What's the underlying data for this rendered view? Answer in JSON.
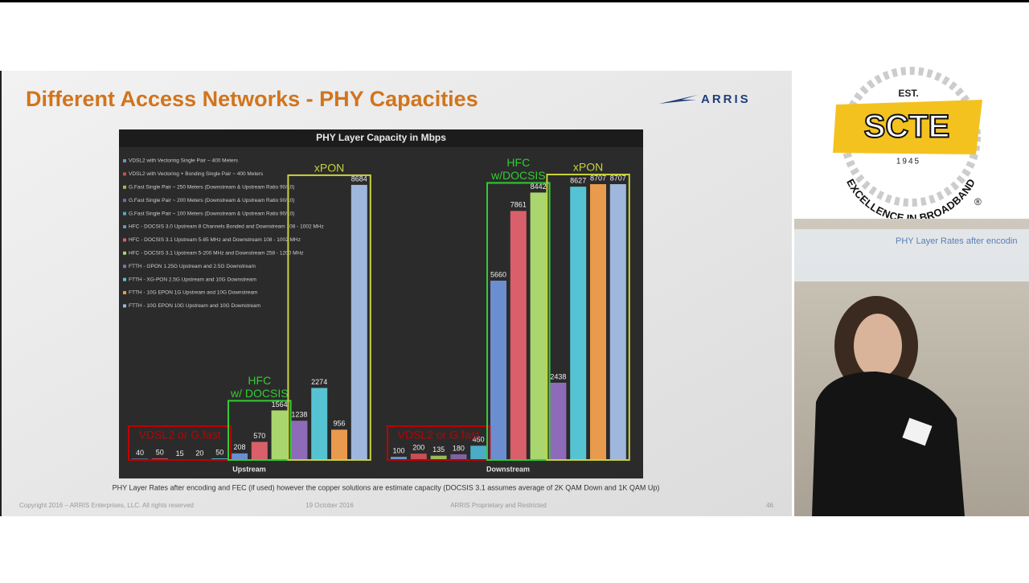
{
  "slide": {
    "title": "Different Access Networks - PHY Capacities",
    "logo": "ARRIS",
    "footnote": "PHY Layer Rates after encoding and FEC (if used) however the copper solutions are estimate capacity (DOCSIS 3.1 assumes average of 2K QAM Down and 1K QAM Up)",
    "footer": {
      "copyright": "Copyright 2016 – ARRIS Enterprises, LLC. All rights reserved",
      "date": "19 October 2016",
      "classification": "ARRIS Proprietary and Restricted",
      "page": "46"
    }
  },
  "badge": {
    "est": "EST.",
    "name": "SCTE",
    "year": "1945",
    "motto": "EXCELLENCE IN BROADBAND",
    "mark": "®"
  },
  "video": {
    "screen_text": "PHY Layer Rates after encodin"
  },
  "chart_data": {
    "type": "bar",
    "title": "PHY Layer Capacity in Mbps",
    "categories": [
      "Upstream",
      "Downstream"
    ],
    "series": [
      {
        "name": "VDSL2 with Vectoring Single Pair ~ 400 Meters",
        "color": "#6f8fc8",
        "values": [
          40,
          100
        ]
      },
      {
        "name": "VDSL2 with Vectoring + Bonding Single Pair ~ 400 Meters",
        "color": "#c94f55",
        "values": [
          50,
          200
        ]
      },
      {
        "name": "G.Fast Single Pair ~ 250 Meters (Downstream & Upstream Ratio 90/10)",
        "color": "#9bbb59",
        "values": [
          15,
          135
        ]
      },
      {
        "name": "G.Fast Single Pair ~ 200 Meters (Downstream & Upstream Ratio 90/10)",
        "color": "#8064a2",
        "values": [
          20,
          180
        ]
      },
      {
        "name": "G.Fast Single Pair ~ 100 Meters (Downstream & Upstream Ratio 90/10)",
        "color": "#4bacc6",
        "values": [
          50,
          450
        ]
      },
      {
        "name": "HFC - DOCSIS 3.0 Upstream 8 Channels Bonded and Downstream 108 - 1002 MHz",
        "color": "#6a8ed0",
        "values": [
          208,
          5660
        ]
      },
      {
        "name": "HFC - DOCSIS 3.1 Upstream 5-85 MHz and Downstream 108 - 1002 MHz",
        "color": "#d9606a",
        "values": [
          570,
          7861
        ]
      },
      {
        "name": "HFC - DOCSIS 3.1 Upstream 5-200 MHz and Downstream 258 - 1200 MHz",
        "color": "#a9d66e",
        "values": [
          1564,
          8442
        ]
      },
      {
        "name": "FTTH - GPON 1.25G Upstream and 2.5G Downstream",
        "color": "#8d6bb8",
        "values": [
          1238,
          2438
        ]
      },
      {
        "name": "FTTH - XG-PON 2.5G Upstream and 10G Downstream",
        "color": "#56c3d3",
        "values": [
          2274,
          8627
        ]
      },
      {
        "name": "FTTH - 10G EPON 1G Upstream and 10G Downstream",
        "color": "#e89a4d",
        "values": [
          956,
          8707
        ]
      },
      {
        "name": "FTTH - 10G EPON 10G Upstream and 10G Downstream",
        "color": "#9fb6dd",
        "values": [
          8684,
          8707
        ]
      }
    ],
    "annotations": [
      [
        {
          "lines": [
            "VDSL2 or G.fast"
          ],
          "color": "#c00000"
        },
        {
          "lines": [
            "HFC",
            "w/ DOCSIS"
          ],
          "color": "#33cc33"
        },
        {
          "lines": [
            "xPON"
          ],
          "color": "#c8d23c"
        }
      ],
      [
        {
          "lines": [
            "VDSL2 or G.fast"
          ],
          "color": "#c00000"
        },
        {
          "lines": [
            "HFC",
            "w/DOCSIS"
          ],
          "color": "#33cc33"
        },
        {
          "lines": [
            "xPON"
          ],
          "color": "#c8d23c"
        }
      ]
    ]
  }
}
